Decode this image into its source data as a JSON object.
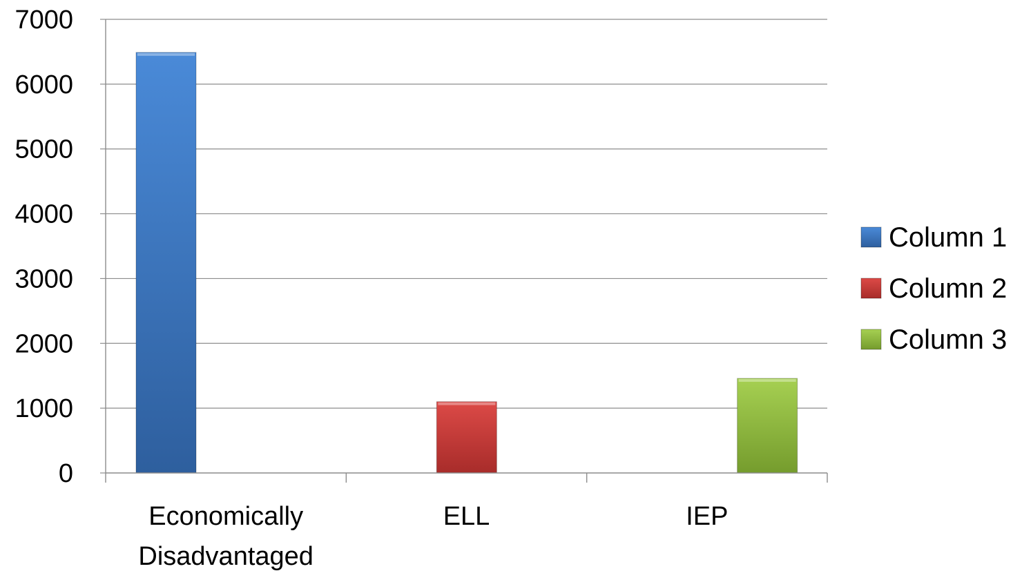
{
  "chart_data": {
    "type": "bar",
    "categories": [
      "Economically Disadvantaged",
      "ELL",
      "IEP"
    ],
    "category_lines": [
      [
        "Economically",
        "Disadvantaged"
      ],
      [
        "ELL"
      ],
      [
        "IEP"
      ]
    ],
    "series": [
      {
        "name": "Column 1",
        "color": "#3a78c5",
        "values": [
          6490,
          null,
          null
        ]
      },
      {
        "name": "Column 2",
        "color": "#c93a38",
        "values": [
          null,
          1100,
          null
        ]
      },
      {
        "name": "Column 3",
        "color": "#8db83c",
        "values": [
          null,
          null,
          1460
        ]
      }
    ],
    "ylim": [
      0,
      7000
    ],
    "yticks": [
      "0",
      "1000",
      "2000",
      "3000",
      "4000",
      "5000",
      "6000",
      "7000"
    ],
    "ytick_values": [
      0,
      1000,
      2000,
      3000,
      4000,
      5000,
      6000,
      7000
    ],
    "grid": true,
    "legend_position": "right",
    "title": "",
    "xlabel": "",
    "ylabel": ""
  }
}
